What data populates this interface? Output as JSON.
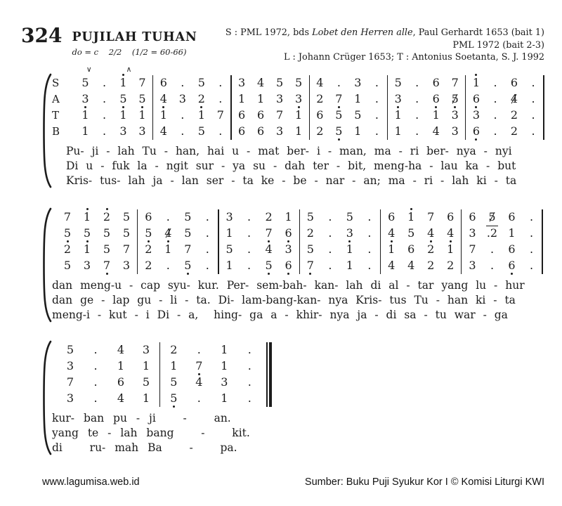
{
  "header": {
    "number": "324",
    "title": "PUJILAH TUHAN",
    "tempo": "do = c    2/2    (1/2 = 60-66)",
    "credits": [
      [
        {
          "t": "S : PML 1972, bds "
        },
        {
          "t": "Lobet den Herren alle",
          "italic": true
        },
        {
          "t": ", Paul Gerhardt 1653 (bait 1)"
        }
      ],
      [
        {
          "t": "PML 1972 (bait 2-3)"
        }
      ],
      [
        {
          "t": "L : Johann Crüger 1653; T : Antonius Soetanta, S. J. 1992"
        }
      ]
    ]
  },
  "notation_legend": {
    "apostrophe": "dot above digit = high octave",
    "comma": "dot below digit = low octave",
    "slash": "slashed digit = raised accidental",
    "underscore": "overline above token",
    "dot": "duration dot"
  },
  "systems": [
    {
      "labels": [
        "S",
        "A",
        "T",
        "B"
      ],
      "marks": [
        {
          "measure": 0,
          "slot": 0.2,
          "glyph": "∨"
        },
        {
          "measure": 0,
          "slot": 2.3,
          "glyph": "∧"
        }
      ],
      "end": "single",
      "voices": [
        {
          "name": "S",
          "measures": [
            [
              "5",
              ".",
              "1'",
              "7"
            ],
            [
              "6",
              ".",
              "5",
              "."
            ],
            [
              "3",
              "4",
              "5",
              "5"
            ],
            [
              "4",
              ".",
              "3",
              "."
            ],
            [
              "5",
              ".",
              "6",
              "7"
            ],
            [
              "1'",
              ".",
              "6",
              "."
            ]
          ]
        },
        {
          "name": "A",
          "measures": [
            [
              "3",
              ".",
              "5",
              "5"
            ],
            [
              "4",
              "3",
              "2",
              "."
            ],
            [
              "1",
              "1",
              "3",
              "3"
            ],
            [
              "2",
              "7,",
              "1",
              "."
            ],
            [
              "3",
              ".",
              "6",
              "5/"
            ],
            [
              "6",
              ".",
              "4/",
              "."
            ]
          ]
        },
        {
          "name": "T",
          "measures": [
            [
              "1'",
              ".",
              "1'",
              "1'"
            ],
            [
              "1'",
              ".",
              "1'",
              "7"
            ],
            [
              "6",
              "6",
              "7",
              "1'"
            ],
            [
              "6",
              "5",
              "5",
              "."
            ],
            [
              "1'",
              ".",
              "1'",
              "3'"
            ],
            [
              "3'",
              ".",
              "2",
              "."
            ]
          ]
        },
        {
          "name": "B",
          "measures": [
            [
              "1",
              ".",
              "3",
              "3"
            ],
            [
              "4",
              ".",
              "5",
              "."
            ],
            [
              "6",
              "6",
              "3",
              "1"
            ],
            [
              "2",
              "5,",
              "1",
              "."
            ],
            [
              "1",
              ".",
              "4",
              "3"
            ],
            [
              "6,",
              ".",
              "2",
              "."
            ]
          ]
        }
      ],
      "lyrics": [
        "Pu- ji - lah Tu - han, hai u - mat ber- i - man, ma - ri ber- nya - nyi",
        "Di u - fuk la - ngit sur - ya su - dah ter - bit, meng-ha - lau ka - but",
        "Kris- tus- lah ja - lan ser - ta ke - be - nar - an; ma - ri - lah ki - ta"
      ]
    },
    {
      "labels": [],
      "marks": [],
      "end": "single",
      "voices": [
        {
          "name": "S",
          "measures": [
            [
              "7",
              "1'",
              "2'",
              "5"
            ],
            [
              "6",
              ".",
              "5",
              "."
            ],
            [
              "3",
              ".",
              "2",
              "1"
            ],
            [
              "5",
              ".",
              "5",
              "."
            ],
            [
              "6",
              "1'",
              "7",
              "6"
            ],
            [
              "6",
              "5/",
              "6",
              "."
            ]
          ]
        },
        {
          "name": "A",
          "measures": [
            [
              "5",
              "5",
              "5",
              "5"
            ],
            [
              "5",
              "4/",
              "5",
              "."
            ],
            [
              "1",
              ".",
              "7,",
              "6,"
            ],
            [
              "2",
              ".",
              "3",
              "."
            ],
            [
              "4",
              "5",
              "4",
              "4"
            ],
            [
              "3",
              ".2_",
              "1",
              "."
            ]
          ]
        },
        {
          "name": "T",
          "measures": [
            [
              "2'",
              "1'",
              "5",
              "7"
            ],
            [
              "2'",
              "1'",
              "7",
              "."
            ],
            [
              "5",
              ".",
              "4",
              "3"
            ],
            [
              "5",
              ".",
              "1'",
              "."
            ],
            [
              "1'",
              "6",
              "2'",
              "1'"
            ],
            [
              "7",
              ".",
              "6",
              "."
            ]
          ]
        },
        {
          "name": "B",
          "measures": [
            [
              "5",
              "3",
              "7,",
              "3"
            ],
            [
              "2",
              ".",
              "5,",
              "."
            ],
            [
              "1",
              ".",
              "5,",
              "6,"
            ],
            [
              "7,",
              ".",
              "1",
              "."
            ],
            [
              "4",
              "4",
              "2",
              "2"
            ],
            [
              "3",
              ".",
              "6,",
              "."
            ]
          ]
        }
      ],
      "lyrics": [
        "dan meng-u - cap syu- kur. Per- sem-bah- kan- lah di al - tar yang lu - hur",
        "dan ge - lap gu - li - ta. Di- lam-bang-kan- nya Kris- tus Tu - han ki - ta",
        "meng-i - kut - i Di - a,  hing- ga a - khir- nya ja - di sa - tu war - ga"
      ]
    },
    {
      "labels": [],
      "marks": [],
      "end": "double",
      "voices": [
        {
          "name": "S",
          "measures": [
            [
              "5",
              ".",
              "4",
              "3"
            ],
            [
              "2",
              ".",
              "1",
              "."
            ]
          ]
        },
        {
          "name": "A",
          "measures": [
            [
              "3",
              ".",
              "1",
              "1"
            ],
            [
              "1",
              "7,",
              "1",
              "."
            ]
          ]
        },
        {
          "name": "T",
          "measures": [
            [
              "7",
              ".",
              "6",
              "5"
            ],
            [
              "5",
              "4",
              "3",
              "."
            ]
          ]
        },
        {
          "name": "B",
          "measures": [
            [
              "3",
              ".",
              "4",
              "1"
            ],
            [
              "5,",
              ".",
              "1",
              "."
            ]
          ]
        }
      ],
      "lyrics": [
        "kur- ban pu - ji   -   an.",
        "yang te - lah bang   -   kit.",
        "di   ru- mah Ba   -   pa."
      ]
    }
  ],
  "footer": {
    "left": "www.lagumisa.web.id",
    "right": "Sumber: Buku Puji Syukur Kor I © Komisi Liturgi KWI"
  }
}
